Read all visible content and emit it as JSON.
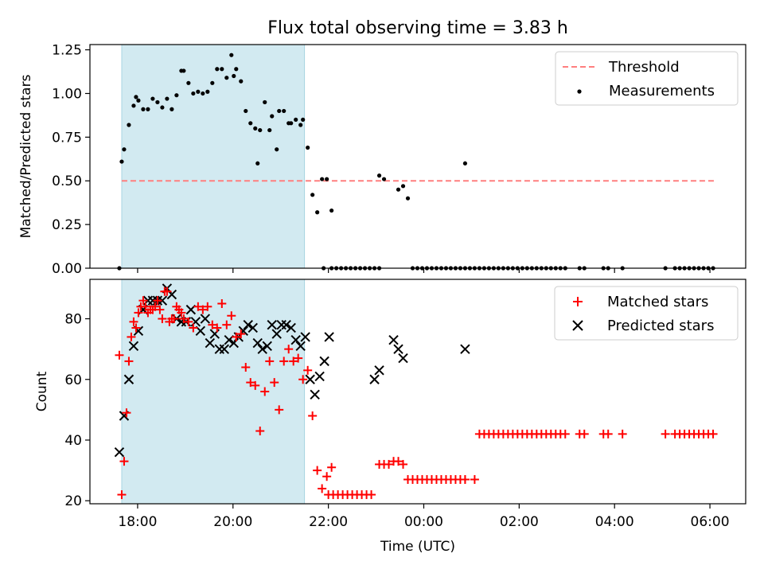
{
  "title": "Flux total observing time = 3.83 h",
  "xlabel": "Time (UTC)",
  "x_tick_labels": [
    "18:00",
    "20:00",
    "22:00",
    "00:00",
    "02:00",
    "04:00",
    "06:00"
  ],
  "x_tick_hours": [
    18,
    20,
    22,
    24,
    26,
    28,
    30
  ],
  "colors": {
    "shade": "#add8e6",
    "threshold": "#ff7f7f",
    "measurements": "#000000",
    "matched": "#ff0000",
    "predicted": "#000000"
  },
  "chart_data": [
    {
      "type": "scatter",
      "ylabel": "Matched/Predicted stars",
      "xlim": [
        "17:00",
        "30:45"
      ],
      "ylim": [
        0,
        1.28
      ],
      "y_ticks": [
        0.0,
        0.25,
        0.5,
        0.75,
        1.0,
        1.25
      ],
      "y_tick_labels": [
        "0.00",
        "0.25",
        "0.50",
        "0.75",
        "1.00",
        "1.25"
      ],
      "shaded_span": [
        "17:40",
        "21:30"
      ],
      "legend": [
        "Threshold",
        "Measurements"
      ],
      "legend_position": "top-right",
      "threshold": {
        "name": "Threshold",
        "y": 0.5,
        "x_range": [
          "17:40",
          "30:07"
        ]
      },
      "measurements": {
        "name": "Measurements",
        "x": [
          "17:37",
          "17:40",
          "17:43",
          "17:49",
          "17:55",
          "17:58",
          "18:01",
          "18:07",
          "18:13",
          "18:19",
          "18:25",
          "18:31",
          "18:37",
          "18:43",
          "18:49",
          "18:55",
          "18:58",
          "19:04",
          "19:10",
          "19:16",
          "19:22",
          "19:28",
          "19:34",
          "19:40",
          "19:46",
          "19:52",
          "19:58",
          "20:01",
          "20:04",
          "20:10",
          "20:16",
          "20:22",
          "20:28",
          "20:31",
          "20:34",
          "20:40",
          "20:46",
          "20:49",
          "20:55",
          "20:58",
          "21:04",
          "21:10",
          "21:13",
          "21:19",
          "21:25",
          "21:28",
          "21:34",
          "21:40",
          "21:46",
          "21:52",
          "21:58",
          "22:04",
          "23:04",
          "23:10",
          "23:28",
          "23:34",
          "23:40",
          "00:52"
        ],
        "y": [
          0.0,
          0.61,
          0.68,
          0.82,
          0.93,
          0.98,
          0.96,
          0.91,
          0.91,
          0.97,
          0.95,
          0.92,
          0.97,
          0.91,
          0.99,
          1.13,
          1.13,
          1.06,
          1.0,
          1.01,
          1.0,
          1.01,
          1.06,
          1.14,
          1.14,
          1.09,
          1.22,
          1.1,
          1.14,
          1.07,
          0.9,
          0.83,
          0.8,
          0.6,
          0.79,
          0.95,
          0.79,
          0.87,
          0.68,
          0.9,
          0.9,
          0.83,
          0.83,
          0.85,
          0.82,
          0.85,
          0.69,
          0.42,
          0.32,
          0.51,
          0.51,
          0.33,
          0.53,
          0.51,
          0.45,
          0.47,
          0.4,
          0.6
        ],
        "zeros_x": [
          "21:54",
          "22:04",
          "22:10",
          "22:16",
          "22:22",
          "22:28",
          "22:34",
          "22:40",
          "22:46",
          "22:52",
          "22:58",
          "23:04",
          "23:46",
          "23:52",
          "23:58",
          "00:04",
          "00:10",
          "00:16",
          "00:22",
          "00:28",
          "00:34",
          "00:40",
          "00:46",
          "00:52",
          "00:58",
          "01:04",
          "01:10",
          "01:16",
          "01:22",
          "01:28",
          "01:34",
          "01:40",
          "01:46",
          "01:52",
          "01:58",
          "02:04",
          "02:10",
          "02:16",
          "02:22",
          "02:28",
          "02:34",
          "02:40",
          "02:46",
          "02:52",
          "02:58",
          "03:16",
          "03:22",
          "03:46",
          "03:52",
          "04:10",
          "05:04",
          "05:16",
          "05:22",
          "05:28",
          "05:34",
          "05:40",
          "05:46",
          "05:52",
          "05:58",
          "06:04"
        ]
      }
    },
    {
      "type": "scatter",
      "ylabel": "Count",
      "xlim": [
        "17:00",
        "30:45"
      ],
      "ylim": [
        19,
        93
      ],
      "y_ticks": [
        20,
        40,
        60,
        80
      ],
      "y_tick_labels": [
        "20",
        "40",
        "60",
        "80"
      ],
      "shaded_span": [
        "17:40",
        "21:30"
      ],
      "legend": [
        "Matched stars",
        "Predicted stars"
      ],
      "legend_position": "top-right",
      "series": [
        {
          "name": "Matched stars",
          "marker": "+",
          "x": [
            "17:37",
            "17:40",
            "17:43",
            "17:46",
            "17:49",
            "17:52",
            "17:55",
            "17:58",
            "18:01",
            "18:04",
            "18:07",
            "18:10",
            "18:13",
            "18:16",
            "18:19",
            "18:22",
            "18:25",
            "18:28",
            "18:31",
            "18:34",
            "18:37",
            "18:40",
            "18:43",
            "18:46",
            "18:49",
            "18:52",
            "18:55",
            "18:58",
            "19:04",
            "19:10",
            "19:16",
            "19:22",
            "19:28",
            "19:34",
            "19:40",
            "19:46",
            "19:52",
            "19:58",
            "20:04",
            "20:10",
            "20:16",
            "20:22",
            "20:28",
            "20:34",
            "20:40",
            "20:46",
            "20:52",
            "20:58",
            "21:04",
            "21:10",
            "21:16",
            "21:22",
            "21:28",
            "21:34",
            "21:40",
            "21:46",
            "21:52",
            "21:58",
            "22:04",
            "23:04",
            "23:10",
            "23:16",
            "23:22",
            "23:28",
            "23:34",
            "00:52",
            "01:04"
          ],
          "y": [
            68,
            22,
            33,
            49,
            66,
            74,
            79,
            77,
            82,
            84,
            86,
            84,
            82,
            83,
            83,
            84,
            86,
            83,
            80,
            89,
            89,
            79,
            80,
            80,
            84,
            83,
            82,
            80,
            79,
            77,
            84,
            83,
            84,
            78,
            77,
            85,
            78,
            81,
            74,
            75,
            64,
            59,
            58,
            43,
            56,
            66,
            59,
            50,
            66,
            70,
            66,
            67,
            60,
            63,
            48,
            30,
            24,
            28,
            31,
            32,
            32,
            32,
            33,
            33,
            32,
            27,
            27
          ],
          "floor_runs": [
            {
              "value": 22,
              "x_start": "22:00",
              "x_end": "22:58",
              "step_min": 6
            },
            {
              "value": 27,
              "x_start": "23:40",
              "x_end": "00:52",
              "step_min": 6
            },
            {
              "value": 42,
              "x_start": "01:10",
              "x_end": "02:58",
              "step_min": 6
            }
          ],
          "x_extra": [
            "03:16",
            "03:22",
            "03:46",
            "03:52",
            "04:10",
            "05:04",
            "05:16",
            "05:22",
            "05:28",
            "05:34",
            "05:40",
            "05:46",
            "05:52",
            "05:58",
            "06:04"
          ],
          "y_extra": [
            42,
            42,
            42,
            42,
            42,
            42,
            42,
            42,
            42,
            42,
            42,
            42,
            42,
            42,
            42
          ]
        },
        {
          "name": "Predicted stars",
          "marker": "x",
          "x": [
            "17:37",
            "17:43",
            "17:49",
            "17:55",
            "18:01",
            "18:07",
            "18:13",
            "18:19",
            "18:25",
            "18:31",
            "18:37",
            "18:43",
            "18:49",
            "18:55",
            "19:01",
            "19:07",
            "19:13",
            "19:19",
            "19:25",
            "19:31",
            "19:37",
            "19:43",
            "19:49",
            "19:55",
            "20:01",
            "20:07",
            "20:13",
            "20:19",
            "20:25",
            "20:31",
            "20:37",
            "20:43",
            "20:49",
            "20:55",
            "21:01",
            "21:07",
            "21:13",
            "21:19",
            "21:25",
            "21:31",
            "21:37",
            "21:43",
            "21:49",
            "21:55",
            "22:01",
            "22:58",
            "23:04",
            "23:22",
            "23:28",
            "23:34",
            "00:52"
          ],
          "y": [
            36,
            48,
            60,
            71,
            76,
            83,
            86,
            86,
            86,
            86,
            90,
            88,
            80,
            79,
            79,
            83,
            79,
            76,
            80,
            72,
            75,
            70,
            70,
            73,
            72,
            74,
            76,
            78,
            77,
            72,
            70,
            71,
            78,
            75,
            78,
            78,
            77,
            73,
            71,
            74,
            60,
            55,
            61,
            66,
            74,
            60,
            63,
            73,
            70,
            67,
            70
          ]
        }
      ]
    }
  ]
}
